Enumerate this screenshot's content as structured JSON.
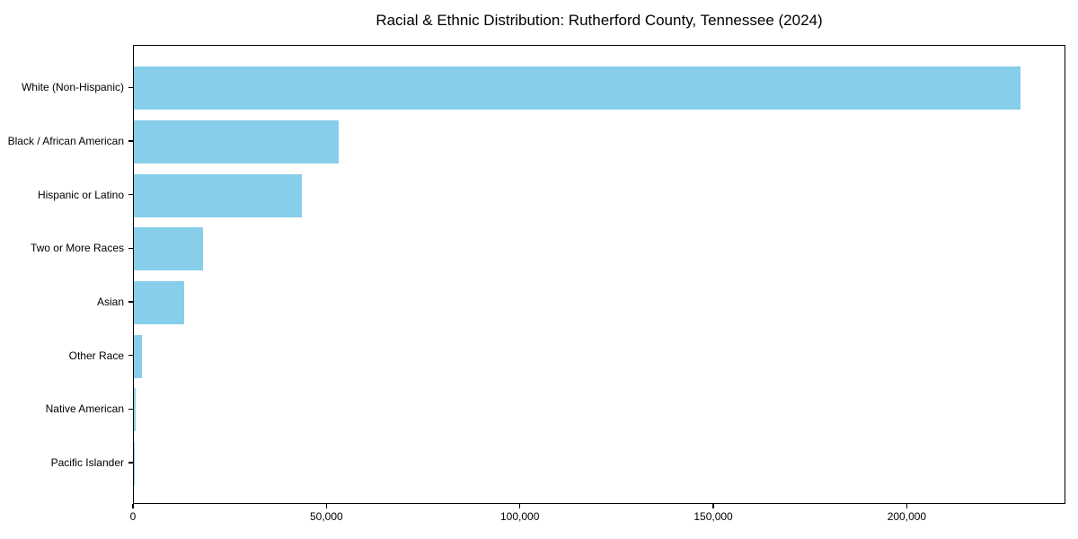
{
  "chart_data": {
    "type": "bar",
    "orientation": "horizontal",
    "title": "Racial & Ethnic Distribution: Rutherford County, Tennessee (2024)",
    "categories": [
      "White (Non-Hispanic)",
      "Black / African American",
      "Hispanic or Latino",
      "Two or More Races",
      "Asian",
      "Other Race",
      "Native American",
      "Pacific Islander"
    ],
    "values": [
      229500,
      53000,
      43600,
      18000,
      13000,
      2200,
      500,
      250
    ],
    "xlabel": "",
    "ylabel": "",
    "xlim": [
      0,
      241000
    ],
    "x_ticks": [
      0,
      50000,
      100000,
      150000,
      200000
    ],
    "x_tick_labels": [
      "0",
      "50,000",
      "100,000",
      "150,000",
      "200,000"
    ],
    "grid": false,
    "legend": null,
    "bar_color": "#87CEEB",
    "axis_color": "#000000",
    "background_color": "#FFFFFF"
  }
}
